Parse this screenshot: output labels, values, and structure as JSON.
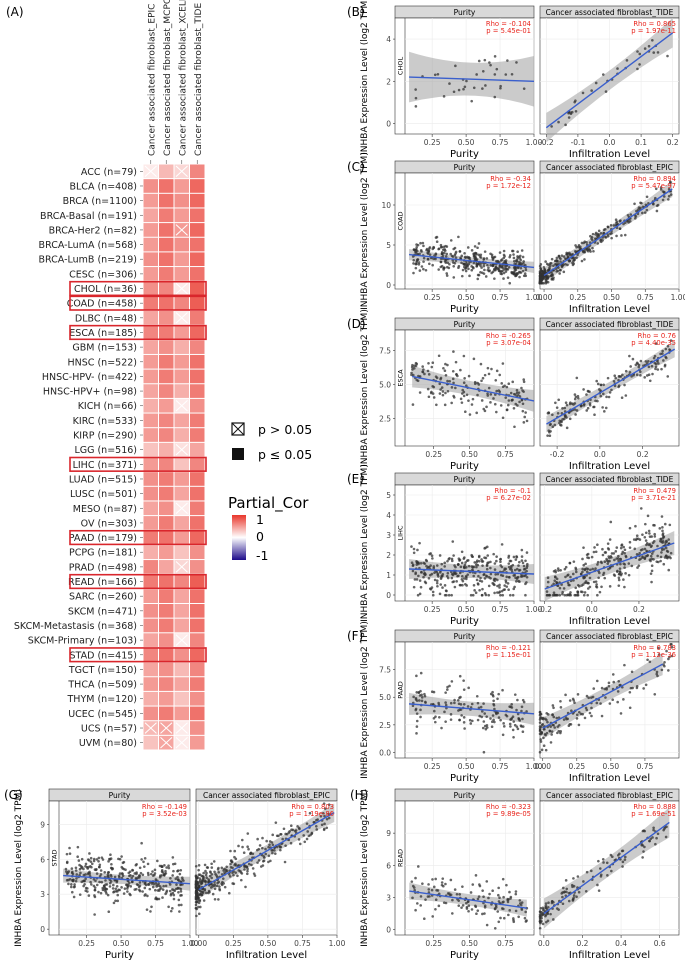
{
  "chart_data": [
    {
      "type": "heatmap",
      "panel_label": "(A)",
      "columns": [
        "Cancer associated fibroblast_EPIC",
        "Cancer associated fibroblast_MCPCOUNTER",
        "Cancer associated fibroblast_XCELL",
        "Cancer associated fibroblast_TIDE"
      ],
      "rows": [
        "ACC (n=79)",
        "BLCA (n=408)",
        "BRCA (n=1100)",
        "BRCA-Basal (n=191)",
        "BRCA-Her2 (n=82)",
        "BRCA-LumA (n=568)",
        "BRCA-LumB (n=219)",
        "CESC (n=306)",
        "CHOL (n=36)",
        "COAD (n=458)",
        "DLBC (n=48)",
        "ESCA (n=185)",
        "GBM (n=153)",
        "HNSC (n=522)",
        "HNSC-HPV- (n=422)",
        "HNSC-HPV+ (n=98)",
        "KICH (n=66)",
        "KIRC (n=533)",
        "KIRP (n=290)",
        "LGG (n=516)",
        "LIHC (n=371)",
        "LUAD (n=515)",
        "LUSC (n=501)",
        "MESO (n=87)",
        "OV (n=303)",
        "PAAD (n=179)",
        "PCPG (n=181)",
        "PRAD (n=498)",
        "READ (n=166)",
        "SARC (n=260)",
        "SKCM (n=471)",
        "SKCM-Metastasis (n=368)",
        "SKCM-Primary (n=103)",
        "STAD (n=415)",
        "TGCT (n=150)",
        "THCA (n=509)",
        "THYM (n=120)",
        "UCEC (n=545)",
        "UCS (n=57)",
        "UVM (n=80)"
      ],
      "highlighted_rows": [
        "CHOL (n=36)",
        "COAD (n=458)",
        "ESCA (n=185)",
        "LIHC (n=371)",
        "PAAD (n=179)",
        "READ (n=166)",
        "STAD (n=415)"
      ],
      "values": [
        [
          0.1,
          0.35,
          0.2,
          0.6
        ],
        [
          0.55,
          0.7,
          0.5,
          0.75
        ],
        [
          0.5,
          0.7,
          0.55,
          0.75
        ],
        [
          0.45,
          0.65,
          0.5,
          0.7
        ],
        [
          0.5,
          0.7,
          0.5,
          0.75
        ],
        [
          0.5,
          0.7,
          0.55,
          0.7
        ],
        [
          0.55,
          0.7,
          0.5,
          0.75
        ],
        [
          0.5,
          0.65,
          0.5,
          0.7
        ],
        [
          0.55,
          0.6,
          0.1,
          0.8
        ],
        [
          0.65,
          0.7,
          0.6,
          0.8
        ],
        [
          0.45,
          0.55,
          0.1,
          0.65
        ],
        [
          0.6,
          0.65,
          0.5,
          0.75
        ],
        [
          0.45,
          0.55,
          0.4,
          0.6
        ],
        [
          0.5,
          0.65,
          0.5,
          0.7
        ],
        [
          0.5,
          0.65,
          0.5,
          0.7
        ],
        [
          0.45,
          0.6,
          0.4,
          0.65
        ],
        [
          0.4,
          0.5,
          0.1,
          0.55
        ],
        [
          0.5,
          0.6,
          0.45,
          0.65
        ],
        [
          0.5,
          0.6,
          0.4,
          0.65
        ],
        [
          0.3,
          0.4,
          0.15,
          0.45
        ],
        [
          0.5,
          0.6,
          0.3,
          0.6
        ],
        [
          0.55,
          0.65,
          0.5,
          0.7
        ],
        [
          0.55,
          0.65,
          0.45,
          0.7
        ],
        [
          0.45,
          0.55,
          0.1,
          0.65
        ],
        [
          0.5,
          0.65,
          0.45,
          0.7
        ],
        [
          0.65,
          0.7,
          0.5,
          0.75
        ],
        [
          0.4,
          0.5,
          0.3,
          0.55
        ],
        [
          0.6,
          0.45,
          0.2,
          0.55
        ],
        [
          0.65,
          0.7,
          0.6,
          0.8
        ],
        [
          0.5,
          0.65,
          0.45,
          0.7
        ],
        [
          0.55,
          0.65,
          0.45,
          0.7
        ],
        [
          0.55,
          0.65,
          0.45,
          0.7
        ],
        [
          0.45,
          0.55,
          0.1,
          0.6
        ],
        [
          0.6,
          0.7,
          0.55,
          0.75
        ],
        [
          0.45,
          0.55,
          0.35,
          0.6
        ],
        [
          0.5,
          0.6,
          0.45,
          0.65
        ],
        [
          0.4,
          0.5,
          0.3,
          0.55
        ],
        [
          0.55,
          0.65,
          0.5,
          0.7
        ],
        [
          0.35,
          0.45,
          0.1,
          0.55
        ],
        [
          0.3,
          0.45,
          0.1,
          0.5
        ]
      ],
      "nonsignificant_cells": [
        [
          0,
          0
        ],
        [
          0,
          2
        ],
        [
          8,
          2
        ],
        [
          10,
          2
        ],
        [
          16,
          2
        ],
        [
          23,
          2
        ],
        [
          32,
          2
        ],
        [
          38,
          0
        ],
        [
          38,
          1
        ],
        [
          38,
          2
        ],
        [
          39,
          1
        ],
        [
          39,
          2
        ],
        [
          19,
          2
        ],
        [
          4,
          2
        ],
        [
          27,
          2
        ]
      ],
      "legend": {
        "nonsig_label": "p > 0.05",
        "sig_label": "p ≤ 0.05",
        "color_title": "Partial_Cor",
        "color_ticks": [
          "1",
          "0",
          "-1"
        ],
        "color_high": "#e8362b",
        "color_mid": "#ffffff",
        "color_low": "#1c0a8a"
      }
    },
    {
      "type": "scatter",
      "panel_label": "(B)",
      "cancer": "CHOL",
      "ylabel": "INHBA Expression Level (log2 TPM)",
      "ylim": [
        -0.5,
        5
      ],
      "yticks": [
        0,
        2,
        4
      ],
      "facets": [
        {
          "title": "Purity",
          "xlabel": "Purity",
          "xlim": [
            0.05,
            1.0
          ],
          "xticks": [
            0.25,
            0.5,
            0.75,
            1.0
          ],
          "xtick_labels": [
            "0.25",
            "0.50",
            "0.75",
            "1.00"
          ],
          "rho": "Rho = -0.104",
          "p": "p = 5.45e-01",
          "fit": [
            [
              0.08,
              2.2
            ],
            [
              1.0,
              2.0
            ]
          ],
          "band": 0.6,
          "n": 36,
          "seed": 11,
          "slope": -0.2,
          "noise": 1.0
        },
        {
          "title": "Cancer associated fibroblast_TIDE",
          "xlabel": "Infiltration Level",
          "xlim": [
            -0.22,
            0.22
          ],
          "xticks": [
            -0.2,
            -0.1,
            0.0,
            0.1,
            0.2
          ],
          "xtick_labels": [
            "-0.2",
            "-0.1",
            "0.0",
            "0.1",
            "0.2"
          ],
          "rho": "Rho = 0.865",
          "p": "p = 1.97e-11",
          "fit": [
            [
              -0.2,
              -0.2
            ],
            [
              0.2,
              4.3
            ]
          ],
          "band": 0.35,
          "n": 36,
          "seed": 12,
          "slope": 11,
          "noise": 0.5
        }
      ]
    },
    {
      "type": "scatter",
      "panel_label": "(C)",
      "cancer": "COAD",
      "ylabel": "INHBA Expression Level (log2 TPM)",
      "ylim": [
        -0.5,
        14
      ],
      "yticks": [
        0,
        5,
        10
      ],
      "facets": [
        {
          "title": "Purity",
          "xlabel": "Purity",
          "xlim": [
            0.05,
            1.0
          ],
          "xticks": [
            0.25,
            0.5,
            0.75,
            1.0
          ],
          "xtick_labels": [
            "0.25",
            "0.50",
            "0.75",
            "1.00"
          ],
          "rho": "Rho = -0.34",
          "p": "p = 1.72e-12",
          "fit": [
            [
              0.08,
              3.8
            ],
            [
              1.0,
              2.2
            ]
          ],
          "band": 0.35,
          "n": 380,
          "seed": 21,
          "slope": -1.7,
          "noise": 1.3
        },
        {
          "title": "Cancer associated fibroblast_EPIC",
          "xlabel": "Infiltration Level",
          "xlim": [
            -0.03,
            1.0
          ],
          "xticks": [
            0.0,
            0.25,
            0.5,
            0.75,
            1.0
          ],
          "xtick_labels": [
            "0.00",
            "0.25",
            "0.50",
            "0.75",
            "1.00"
          ],
          "rho": "Rho = 0.894",
          "p": "p = 5.47e-97",
          "fit": [
            [
              0.0,
              1.2
            ],
            [
              0.95,
              12.0
            ]
          ],
          "band": 0.5,
          "n": 380,
          "seed": 22,
          "slope": 11,
          "noise": 0.9,
          "skew": true
        }
      ]
    },
    {
      "type": "scatter",
      "panel_label": "(D)",
      "cancer": "ESCA",
      "ylabel": "INHBA Expression Level (log2 TPM)",
      "ylim": [
        0.5,
        9
      ],
      "yticks": [
        2.5,
        5.0,
        7.5
      ],
      "facets": [
        {
          "title": "Purity",
          "xlabel": "Purity",
          "xlim": [
            0.05,
            0.95
          ],
          "xticks": [
            0.25,
            0.5,
            0.75
          ],
          "xtick_labels": [
            "0.25",
            "0.50",
            "0.75"
          ],
          "rho": "Rho = -0.265",
          "p": "p = 3.07e-04",
          "fit": [
            [
              0.1,
              5.6
            ],
            [
              0.95,
              3.8
            ]
          ],
          "band": 0.4,
          "n": 180,
          "seed": 31,
          "slope": -2.1,
          "noise": 1.3
        },
        {
          "title": "Cancer associated fibroblast_TIDE",
          "xlabel": "Infiltration Level",
          "xlim": [
            -0.28,
            0.37
          ],
          "xticks": [
            -0.2,
            0.0,
            0.2
          ],
          "xtick_labels": [
            "-0.2",
            "0.0",
            "0.2"
          ],
          "rho": "Rho = 0.76",
          "p": "p = 4.40e-35",
          "fit": [
            [
              -0.25,
              2.1
            ],
            [
              0.35,
              7.6
            ]
          ],
          "band": 0.3,
          "n": 180,
          "seed": 32,
          "slope": 9,
          "noise": 0.9
        }
      ]
    },
    {
      "type": "scatter",
      "panel_label": "(E)",
      "cancer": "LIHC",
      "ylabel": "INHBA Expression Level (log2 TPM)",
      "ylim": [
        -0.3,
        5.5
      ],
      "yticks": [
        0,
        1,
        2,
        3,
        4,
        5
      ],
      "facets": [
        {
          "title": "Purity",
          "xlabel": "Purity",
          "xlim": [
            0.05,
            1.0
          ],
          "xticks": [
            0.25,
            0.5,
            0.75,
            1.0
          ],
          "xtick_labels": [
            "0.25",
            "0.50",
            "0.75",
            "1.00"
          ],
          "rho": "Rho = -0.1",
          "p": "p = 6.27e-02",
          "fit": [
            [
              0.08,
              1.3
            ],
            [
              1.0,
              1.05
            ]
          ],
          "band": 0.25,
          "n": 340,
          "seed": 41,
          "slope": -0.3,
          "noise": 0.9
        },
        {
          "title": "Cancer associated fibroblast_TIDE",
          "xlabel": "Infiltration Level",
          "xlim": [
            -0.22,
            0.37
          ],
          "xticks": [
            -0.2,
            0.0,
            0.2
          ],
          "xtick_labels": [
            "-0.2",
            "0.0",
            "0.2"
          ],
          "rho": "Rho = 0.479",
          "p": "p = 3.71e-21",
          "fit": [
            [
              -0.2,
              0.3
            ],
            [
              0.35,
              2.6
            ]
          ],
          "band": 0.3,
          "n": 340,
          "seed": 42,
          "slope": 4,
          "noise": 0.9
        }
      ]
    },
    {
      "type": "scatter",
      "panel_label": "(F)",
      "cancer": "PAAD",
      "ylabel": "INHBA Expression Level (log2 TPM)",
      "ylim": [
        -0.5,
        10
      ],
      "yticks": [
        0.0,
        2.5,
        5.0,
        7.5
      ],
      "facets": [
        {
          "title": "Purity",
          "xlabel": "Purity",
          "xlim": [
            0.05,
            1.0
          ],
          "xticks": [
            0.25,
            0.5,
            0.75,
            1.0
          ],
          "xtick_labels": [
            "0.25",
            "0.50",
            "0.75",
            "1.00"
          ],
          "rho": "Rho = -0.121",
          "p": "p = 1.15e-01",
          "fit": [
            [
              0.08,
              4.4
            ],
            [
              1.0,
              3.5
            ]
          ],
          "band": 0.5,
          "n": 170,
          "seed": 51,
          "slope": -1,
          "noise": 1.6
        },
        {
          "title": "Cancer associated fibroblast_EPIC",
          "xlabel": "Infiltration Level",
          "xlim": [
            -0.02,
            1.0
          ],
          "xticks": [
            0.0,
            0.25,
            0.5,
            0.75
          ],
          "xtick_labels": [
            "0.00",
            "0.25",
            "0.50",
            "0.75"
          ],
          "rho": "Rho = 0.783",
          "p": "p = 1.12e-36",
          "fit": [
            [
              0.0,
              2.2
            ],
            [
              0.88,
              8.0
            ]
          ],
          "band": 0.5,
          "n": 170,
          "seed": 52,
          "slope": 7,
          "noise": 1.2,
          "skew": true
        }
      ]
    },
    {
      "type": "scatter",
      "panel_label": "(G)",
      "cancer": "STAD",
      "ylabel": "INHBA Expression Level (log2 TPM)",
      "ylim": [
        -0.5,
        11
      ],
      "yticks": [
        0,
        3,
        6,
        9
      ],
      "facets": [
        {
          "title": "Purity",
          "xlabel": "Purity",
          "xlim": [
            0.05,
            1.0
          ],
          "xticks": [
            0.25,
            0.5,
            0.75,
            1.0
          ],
          "xtick_labels": [
            "0.25",
            "0.50",
            "0.75",
            "1.00"
          ],
          "rho": "Rho = -0.149",
          "p": "p = 3.52e-03",
          "fit": [
            [
              0.08,
              4.6
            ],
            [
              1.0,
              3.9
            ]
          ],
          "band": 0.3,
          "n": 380,
          "seed": 61,
          "slope": -0.8,
          "noise": 1.5
        },
        {
          "title": "Cancer associated fibroblast_EPIC",
          "xlabel": "Infiltration Level",
          "xlim": [
            -0.02,
            1.0
          ],
          "xticks": [
            0.0,
            0.25,
            0.5,
            0.75,
            1.0
          ],
          "xtick_labels": [
            "0.00",
            "0.25",
            "0.50",
            "0.75",
            "1.00"
          ],
          "rho": "Rho = 0.803",
          "p": "p = 1.19e-86",
          "fit": [
            [
              0.0,
              3.4
            ],
            [
              0.98,
              10.0
            ]
          ],
          "band": 0.4,
          "n": 380,
          "seed": 62,
          "slope": 7,
          "noise": 1.1,
          "skew": true
        }
      ]
    },
    {
      "type": "scatter",
      "panel_label": "(H)",
      "cancer": "READ",
      "ylabel": "INHBA Expression Level (log2 TPM)",
      "ylim": [
        -0.5,
        12
      ],
      "yticks": [
        0,
        3,
        6,
        9
      ],
      "facets": [
        {
          "title": "Purity",
          "xlabel": "Purity",
          "xlim": [
            0.05,
            0.95
          ],
          "xticks": [
            0.25,
            0.5,
            0.75
          ],
          "xtick_labels": [
            "0.25",
            "0.50",
            "0.75"
          ],
          "rho": "Rho = -0.323",
          "p": "p = 9.89e-05",
          "fit": [
            [
              0.08,
              3.6
            ],
            [
              0.9,
              2.0
            ]
          ],
          "band": 0.4,
          "n": 150,
          "seed": 71,
          "slope": -2,
          "noise": 1.3
        },
        {
          "title": "Cancer associated fibroblast_EPIC",
          "xlabel": "Infiltration Level",
          "xlim": [
            -0.02,
            0.7
          ],
          "xticks": [
            0.0,
            0.2,
            0.4,
            0.6
          ],
          "xtick_labels": [
            "0.0",
            "0.2",
            "0.4",
            "0.6"
          ],
          "rho": "Rho = 0.888",
          "p": "p = 1.69e-51",
          "fit": [
            [
              0.0,
              1.5
            ],
            [
              0.65,
              10.0
            ]
          ],
          "band": 0.7,
          "n": 150,
          "seed": 72,
          "slope": 13,
          "noise": 0.9,
          "skew": true
        }
      ]
    }
  ]
}
